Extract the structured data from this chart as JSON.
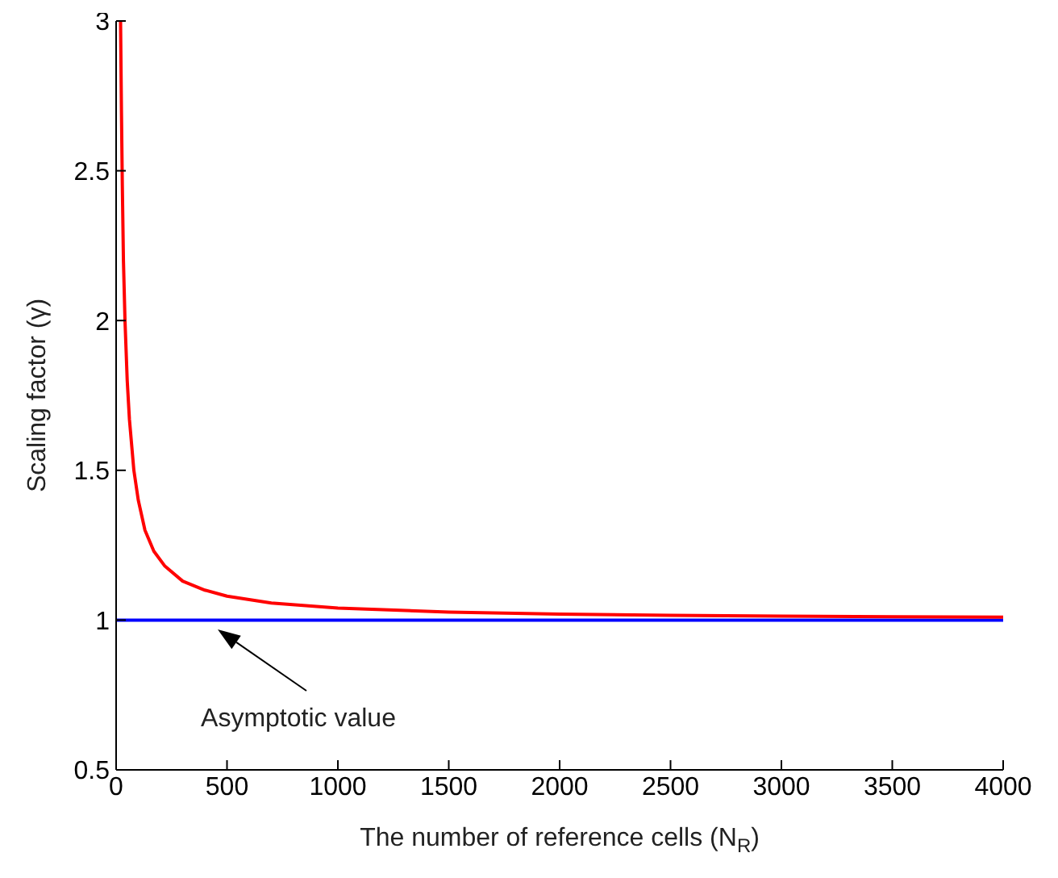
{
  "chart_data": {
    "type": "line",
    "xlabel": "The number of reference cells (N$_{R}$)",
    "ylabel": "Scaling factor (γ)",
    "xlim": [
      0,
      4000
    ],
    "xticks": [
      0,
      500,
      1000,
      1500,
      2000,
      2500,
      3000,
      3500,
      4000
    ],
    "ylim": [
      0.5,
      3
    ],
    "yticks": [
      0.5,
      1,
      1.5,
      2,
      2.5,
      3
    ],
    "grid": false,
    "legend": false,
    "marker": "none",
    "line_style": "solid",
    "series": [
      {
        "color": "#ff0000",
        "x": [
          20,
          24,
          28,
          33,
          40,
          50,
          60,
          80,
          100,
          130,
          170,
          220,
          300,
          400,
          500,
          700,
          1000,
          1500,
          2000,
          2500,
          3000,
          3500,
          4000
        ],
        "values": [
          3,
          2.7,
          2.45,
          2.2,
          2.0,
          1.8,
          1.67,
          1.5,
          1.4,
          1.3,
          1.23,
          1.18,
          1.13,
          1.1,
          1.08,
          1.057,
          1.04,
          1.027,
          1.02,
          1.016,
          1.013,
          1.011,
          1.01
        ]
      }
    ],
    "ref_lines": [
      {
        "axis": "y",
        "value": 1,
        "color": "#0000ff"
      }
    ],
    "annotations": [
      "Asymptotic value"
    ]
  }
}
